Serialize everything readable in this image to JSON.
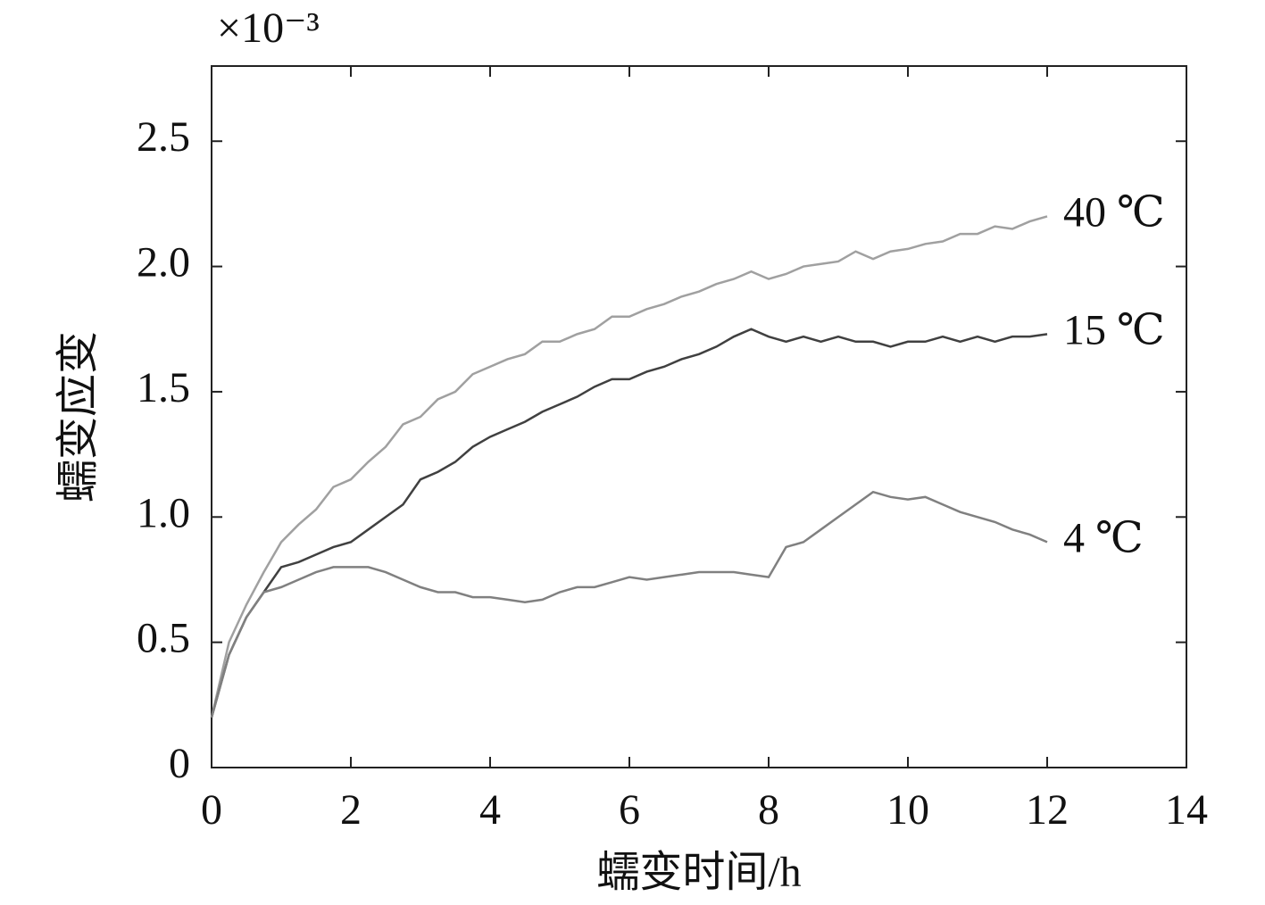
{
  "chart_data": {
    "type": "line",
    "xlabel": "蠕变时间/h",
    "ylabel": "蠕变应变",
    "y_scale_label": "×10⁻³",
    "x": [
      0,
      0.25,
      0.5,
      0.75,
      1,
      1.25,
      1.5,
      1.75,
      2,
      2.25,
      2.5,
      2.75,
      3,
      3.25,
      3.5,
      3.75,
      4,
      4.25,
      4.5,
      4.75,
      5,
      5.25,
      5.5,
      5.75,
      6,
      6.25,
      6.5,
      6.75,
      7,
      7.25,
      7.5,
      7.75,
      8,
      8.25,
      8.5,
      8.75,
      9,
      9.25,
      9.5,
      9.75,
      10,
      10.25,
      10.5,
      10.75,
      11,
      11.25,
      11.5,
      11.75,
      12
    ],
    "series": [
      {
        "name": "40 ℃",
        "color": "#a0a0a0",
        "values": [
          0.2,
          0.5,
          0.65,
          0.78,
          0.9,
          0.97,
          1.03,
          1.12,
          1.15,
          1.22,
          1.28,
          1.37,
          1.4,
          1.47,
          1.5,
          1.57,
          1.6,
          1.63,
          1.65,
          1.7,
          1.7,
          1.73,
          1.75,
          1.8,
          1.8,
          1.83,
          1.85,
          1.88,
          1.9,
          1.93,
          1.95,
          1.98,
          1.95,
          1.97,
          2.0,
          2.01,
          2.02,
          2.06,
          2.03,
          2.06,
          2.07,
          2.09,
          2.1,
          2.13,
          2.13,
          2.16,
          2.15,
          2.18,
          2.2
        ]
      },
      {
        "name": "15 ℃",
        "color": "#404040",
        "values": [
          0.2,
          0.45,
          0.6,
          0.7,
          0.8,
          0.82,
          0.85,
          0.88,
          0.9,
          0.95,
          1.0,
          1.05,
          1.15,
          1.18,
          1.22,
          1.28,
          1.32,
          1.35,
          1.38,
          1.42,
          1.45,
          1.48,
          1.52,
          1.55,
          1.55,
          1.58,
          1.6,
          1.63,
          1.65,
          1.68,
          1.72,
          1.75,
          1.72,
          1.7,
          1.72,
          1.7,
          1.72,
          1.7,
          1.7,
          1.68,
          1.7,
          1.7,
          1.72,
          1.7,
          1.72,
          1.7,
          1.72,
          1.72,
          1.73
        ]
      },
      {
        "name": "4 ℃",
        "color": "#808080",
        "values": [
          0.2,
          0.45,
          0.6,
          0.7,
          0.72,
          0.75,
          0.78,
          0.8,
          0.8,
          0.8,
          0.78,
          0.75,
          0.72,
          0.7,
          0.7,
          0.68,
          0.68,
          0.67,
          0.66,
          0.67,
          0.7,
          0.72,
          0.72,
          0.74,
          0.76,
          0.75,
          0.76,
          0.77,
          0.78,
          0.78,
          0.78,
          0.77,
          0.76,
          0.88,
          0.9,
          0.95,
          1.0,
          1.05,
          1.1,
          1.08,
          1.07,
          1.08,
          1.05,
          1.02,
          1.0,
          0.98,
          0.95,
          0.93,
          0.9
        ]
      }
    ],
    "xlim": [
      0,
      14
    ],
    "xticks": [
      0,
      2,
      4,
      6,
      8,
      10,
      12,
      14
    ],
    "ylim": [
      0,
      2.8
    ],
    "yticks": [
      0,
      0.5,
      {
        "value": 1,
        "label": "1.0"
      },
      1.5,
      {
        "value": 2,
        "label": "2.0"
      },
      2.5
    ]
  }
}
